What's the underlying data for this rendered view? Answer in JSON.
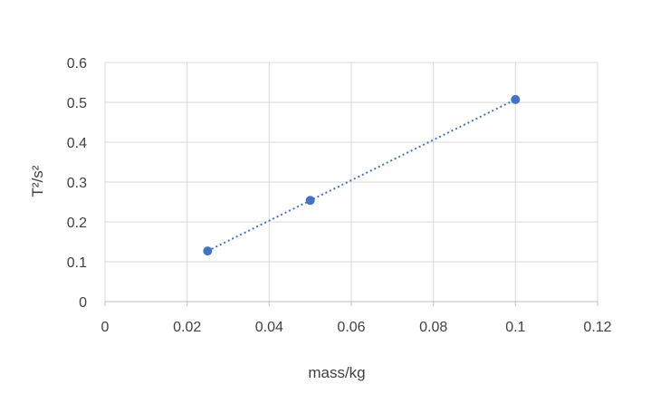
{
  "chart_data": {
    "type": "scatter",
    "title": "",
    "xlabel": "mass/kg",
    "ylabel": "T²/s²",
    "xlim": [
      0,
      0.12
    ],
    "ylim": [
      0,
      0.6
    ],
    "x_ticks": [
      "0",
      "0.02",
      "0.04",
      "0.06",
      "0.08",
      "0.1",
      "0.12"
    ],
    "y_ticks": [
      "0",
      "0.1",
      "0.2",
      "0.3",
      "0.4",
      "0.5",
      "0.6"
    ],
    "grid": true,
    "legend": "none",
    "series": [
      {
        "x": [
          0.025,
          0.05,
          0.1
        ],
        "y": [
          0.127,
          0.254,
          0.507
        ],
        "color": "#4472c4",
        "trendline": "linear"
      }
    ]
  }
}
